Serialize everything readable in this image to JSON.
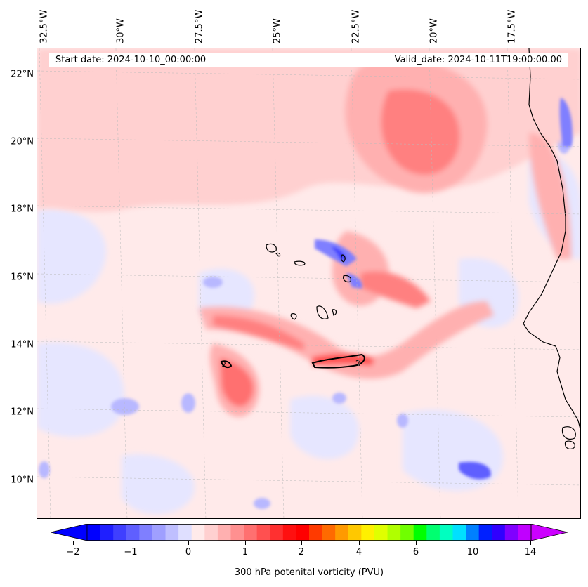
{
  "map": {
    "start_date": "Start date: 2024-10-10_00:00:00",
    "valid_date": "Valid_date: 2024-10-11T19:00:00.00",
    "longitude_labels": [
      "32.5°W",
      "30°W",
      "27.5°W",
      "25°W",
      "22.5°W",
      "20°W",
      "17.5°W"
    ],
    "latitude_labels": [
      "22°N",
      "20°N",
      "18°N",
      "16°N",
      "14°N",
      "12°N",
      "10°N"
    ],
    "contour_label": "2",
    "region": "Cabo Verde / West African coast"
  },
  "colorbar": {
    "label": "300 hPa potenital vorticity (PVU)",
    "tick_labels": [
      "−2",
      "−1",
      "0",
      "1",
      "2",
      "4",
      "6",
      "10",
      "14"
    ],
    "levels": [
      -2,
      -1.5,
      -1,
      -0.5,
      0,
      0.25,
      0.5,
      0.75,
      1,
      1.5,
      2,
      3,
      4,
      5,
      6,
      8,
      10,
      12,
      14
    ],
    "colors": [
      "#0000ff",
      "#1f1fff",
      "#3f3fff",
      "#5f5fff",
      "#7f7fff",
      "#9f9fff",
      "#bfbfff",
      "#dfdfff",
      "#ffeaea",
      "#ffd0d0",
      "#ffb0b0",
      "#ff9090",
      "#ff7070",
      "#ff5050",
      "#ff3030",
      "#ff1010",
      "#ff0000",
      "#ff3a00",
      "#ff6a00",
      "#ff9a00",
      "#ffc800",
      "#fff000",
      "#e0ff00",
      "#b0ff00",
      "#70ff00",
      "#00ff00",
      "#00ff70",
      "#00ffc0",
      "#00e0ff",
      "#0080ff",
      "#0020ff",
      "#3000ff",
      "#8000ff",
      "#c000ff"
    ],
    "under_color": "#0000ff",
    "over_color": "#cc00ff"
  }
}
